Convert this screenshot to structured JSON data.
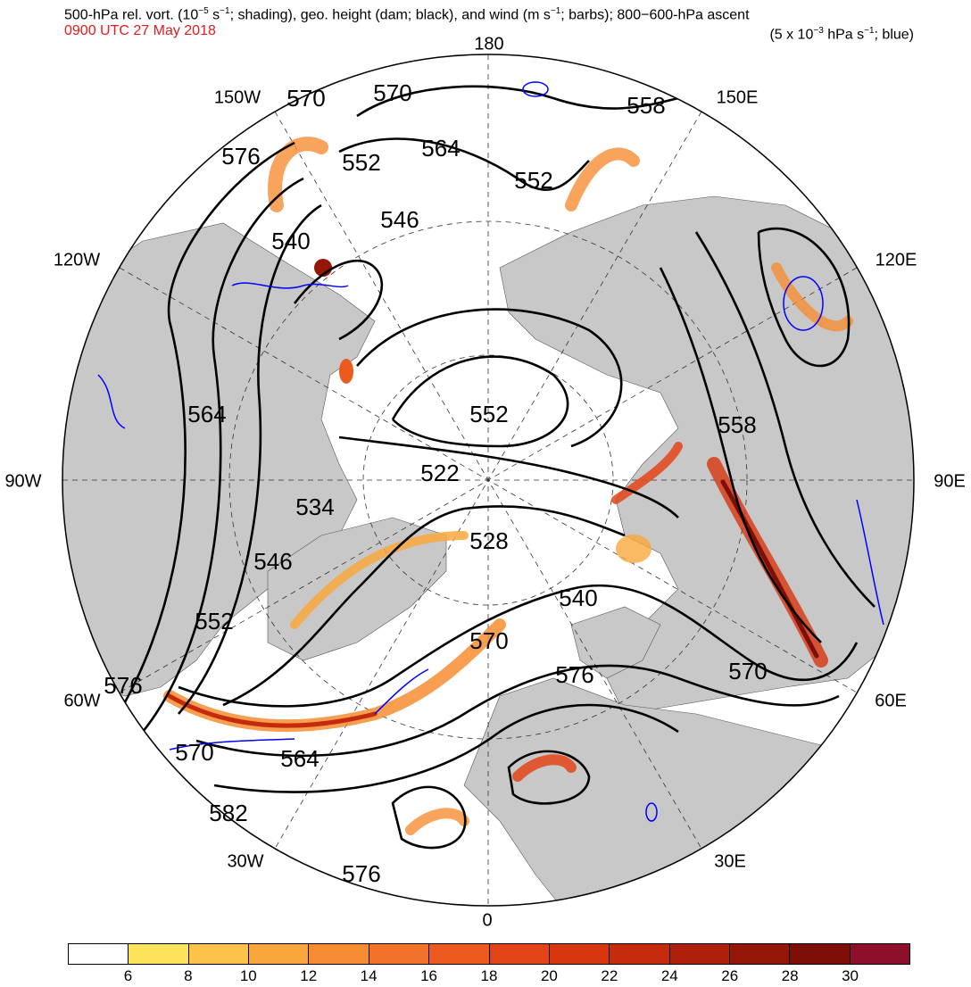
{
  "header": {
    "title_pre": "500-hPa rel. vort. (10",
    "title_exp1": "−5",
    "title_mid1": " s",
    "title_exp2": "−1",
    "title_mid2": "; shading), geo. height (dam; black), and wind (m s",
    "title_exp3": "−1",
    "title_post": "; barbs); 800−600-hPa ascent",
    "time": "0900 UTC 27 May 2018",
    "units_pre": "(5 x 10",
    "units_exp": "−3",
    "units_mid": " hPa s",
    "units_exp2": "−1",
    "units_post": "; blue)"
  },
  "colors": {
    "land": "#c8c8c8",
    "ocean": "#ffffff",
    "height_contour": "#000000",
    "ascent_contour": "#0000ff",
    "time_text": "#e41a1c"
  },
  "longitude_labels": [
    "180",
    "150E",
    "120E",
    "90E",
    "60E",
    "30E",
    "0",
    "30W",
    "60W",
    "90W",
    "120W",
    "150W"
  ],
  "height_labels": [
    "570",
    "570",
    "564",
    "558",
    "576",
    "552",
    "552",
    "546",
    "540",
    "564",
    "552",
    "558",
    "522",
    "534",
    "528",
    "546",
    "540",
    "552",
    "570",
    "576",
    "576",
    "570",
    "570",
    "564",
    "582",
    "576"
  ],
  "colorbar": {
    "colors": [
      "#ffffff",
      "#fde35a",
      "#fcc24a",
      "#f9a73c",
      "#f68d33",
      "#f2722a",
      "#ec5a20",
      "#e34417",
      "#d7360f",
      "#c52a0c",
      "#ae200b",
      "#951708",
      "#7e0f06",
      "#8e0f2a"
    ],
    "labels": [
      "6",
      "8",
      "10",
      "12",
      "14",
      "16",
      "18",
      "20",
      "22",
      "24",
      "26",
      "28",
      "30"
    ]
  }
}
